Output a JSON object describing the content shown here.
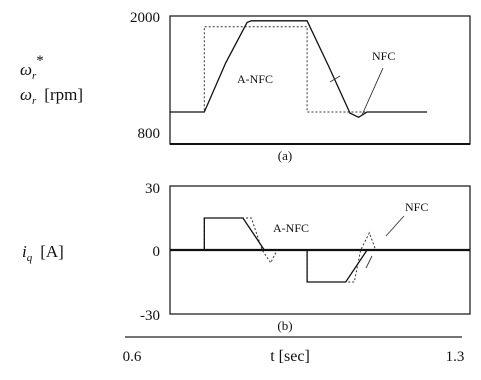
{
  "chart_data": [
    {
      "panel": "(a)",
      "type": "line",
      "ylabel_sym1": "ω",
      "ylabel_sub1": "r",
      "ylabel_sup1": "*",
      "ylabel_sym2": "ω",
      "ylabel_sub2": "r",
      "ylabel_unit": "[rpm]",
      "ylim": [
        800,
        2000
      ],
      "yticks": [
        "2000",
        "800"
      ],
      "xlim": [
        0.6,
        1.3
      ],
      "grid": false,
      "series": [
        {
          "x": [
            0.6,
            0.68,
            0.68,
            0.92,
            0.92,
            1.2
          ],
          "y": [
            1100,
            1100,
            1900,
            1900,
            1100,
            1100
          ]
        },
        {
          "x": [
            0.6,
            0.68,
            0.73,
            0.78,
            0.79,
            0.92,
            0.97,
            1.02,
            1.04,
            1.06,
            1.2
          ],
          "y": [
            1100,
            1100,
            1560,
            1940,
            1955,
            1955,
            1530,
            1090,
            1050,
            1100,
            1100
          ]
        },
        {
          "x": [
            0.6,
            1.3
          ],
          "y": [
            800,
            800
          ]
        }
      ],
      "annotations": [
        "A-NFC",
        "NFC"
      ]
    },
    {
      "panel": "(b)",
      "type": "line",
      "ylabel_sym": "i",
      "ylabel_sub": "q",
      "ylabel_unit": "[A]",
      "ylim": [
        -30,
        30
      ],
      "yticks": [
        "30",
        "0",
        "-30"
      ],
      "xlim": [
        0.6,
        1.3
      ],
      "xticks": [
        "0.6",
        "1.3"
      ],
      "xlabel": "t [sec]",
      "grid": false,
      "series": [
        {
          "x": [
            0.6,
            0.68,
            0.68,
            0.79,
            0.815,
            0.835,
            0.85,
            0.92,
            0.92,
            1.03,
            1.045,
            1.065,
            1.08,
            1.3
          ],
          "y": [
            0,
            0,
            15,
            15,
            0,
            -6,
            0,
            0,
            -15,
            -15,
            0,
            8,
            0,
            0
          ]
        },
        {
          "x": [
            0.6,
            0.68,
            0.68,
            0.77,
            0.82,
            0.86,
            0.92,
            0.92,
            1.01,
            1.06,
            1.1,
            1.3
          ],
          "y": [
            0,
            0,
            15,
            15,
            0,
            0,
            0,
            -15,
            -15,
            0,
            0,
            0
          ]
        }
      ],
      "annotations": [
        "A-NFC",
        "NFC"
      ]
    }
  ]
}
